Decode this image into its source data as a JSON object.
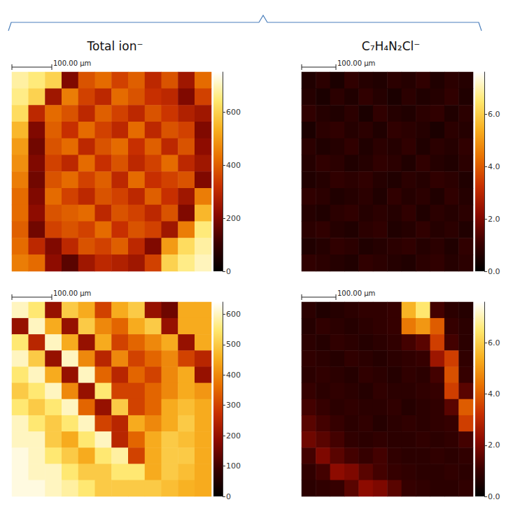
{
  "chart_data": [
    {
      "type": "heatmap",
      "title": "Total ion⁻",
      "scale_bar": {
        "label": "100.00 µm",
        "length": 100
      },
      "extent_um": 500,
      "colorbar_range": [
        0,
        750
      ],
      "colorbar_ticks": [
        0,
        200,
        400,
        600
      ],
      "cells": [
        [
          680,
          650,
          600,
          200,
          380,
          420,
          350,
          400,
          300,
          380,
          250,
          420
        ],
        [
          660,
          600,
          250,
          450,
          350,
          300,
          420,
          380,
          320,
          300,
          200,
          350
        ],
        [
          620,
          300,
          420,
          380,
          300,
          400,
          350,
          300,
          380,
          330,
          280,
          250
        ],
        [
          550,
          200,
          400,
          320,
          420,
          350,
          300,
          420,
          300,
          380,
          350,
          200
        ],
        [
          500,
          180,
          380,
          420,
          300,
          380,
          420,
          320,
          400,
          300,
          380,
          220
        ],
        [
          480,
          200,
          350,
          300,
          420,
          320,
          380,
          300,
          350,
          420,
          300,
          250
        ],
        [
          450,
          180,
          380,
          420,
          350,
          400,
          300,
          420,
          320,
          350,
          380,
          200
        ],
        [
          420,
          200,
          420,
          350,
          300,
          380,
          350,
          300,
          400,
          320,
          250,
          450
        ],
        [
          420,
          220,
          380,
          400,
          420,
          300,
          380,
          350,
          300,
          380,
          200,
          550
        ],
        [
          400,
          180,
          350,
          380,
          350,
          420,
          320,
          380,
          350,
          250,
          450,
          650
        ],
        [
          420,
          300,
          200,
          300,
          380,
          350,
          400,
          300,
          200,
          500,
          620,
          680
        ],
        [
          450,
          420,
          220,
          150,
          250,
          300,
          280,
          250,
          350,
          600,
          660,
          700
        ]
      ]
    },
    {
      "type": "heatmap",
      "title": "C₇H₄N₂Cl⁻",
      "scale_bar": {
        "label": "100.00 µm",
        "length": 100
      },
      "extent_um": 500,
      "colorbar_range": [
        0,
        7.6
      ],
      "colorbar_ticks": [
        {
          "value": 0,
          "label": "0.0"
        },
        {
          "value": 2,
          "label": "2.0"
        },
        {
          "value": 4,
          "label": "4.0"
        },
        {
          "value": 6,
          "label": "6.0"
        }
      ],
      "cells": [
        [
          0.6,
          0.8,
          0.5,
          0.9,
          0.7,
          0.6,
          0.8,
          0.7,
          0.9,
          0.6,
          0.8,
          0.7
        ],
        [
          0.7,
          0.5,
          0.8,
          0.6,
          0.9,
          0.7,
          0.5,
          0.8,
          0.6,
          0.7,
          0.9,
          0.6
        ],
        [
          0.9,
          0.7,
          0.6,
          0.8,
          0.5,
          0.9,
          0.7,
          0.6,
          0.8,
          0.9,
          0.6,
          0.8
        ],
        [
          0.5,
          0.8,
          0.9,
          0.7,
          0.8,
          0.6,
          0.9,
          0.8,
          0.7,
          0.5,
          0.8,
          0.7
        ],
        [
          0.8,
          0.6,
          0.7,
          0.9,
          0.6,
          0.8,
          0.7,
          0.9,
          0.6,
          0.8,
          0.7,
          0.9
        ],
        [
          0.7,
          0.9,
          0.8,
          0.6,
          0.7,
          0.9,
          0.8,
          0.6,
          0.9,
          0.7,
          0.6,
          0.8
        ],
        [
          0.6,
          0.7,
          0.9,
          0.8,
          0.9,
          0.7,
          0.6,
          0.8,
          0.7,
          0.9,
          0.8,
          0.6
        ],
        [
          0.9,
          0.8,
          0.6,
          0.7,
          0.8,
          0.6,
          0.9,
          0.7,
          0.8,
          0.6,
          0.9,
          0.7
        ],
        [
          0.7,
          0.6,
          0.8,
          0.9,
          0.7,
          0.8,
          0.7,
          0.9,
          0.6,
          0.8,
          0.7,
          0.8
        ],
        [
          0.8,
          0.9,
          0.7,
          0.6,
          0.8,
          0.9,
          0.6,
          0.7,
          0.9,
          0.7,
          0.8,
          0.6
        ],
        [
          0.6,
          0.7,
          0.9,
          0.8,
          0.6,
          0.7,
          0.8,
          0.9,
          0.7,
          0.8,
          0.6,
          0.9
        ],
        [
          0.9,
          0.8,
          0.7,
          0.6,
          0.9,
          0.8,
          0.7,
          0.6,
          0.8,
          0.9,
          0.7,
          0.8
        ]
      ]
    },
    {
      "type": "heatmap",
      "scale_bar": {
        "label": "100.00 µm",
        "length": 100
      },
      "extent_um": 500,
      "colorbar_range": [
        0,
        640
      ],
      "colorbar_ticks": [
        0,
        100,
        200,
        300,
        400,
        500,
        600
      ],
      "cells": [
        [
          600,
          550,
          200,
          500,
          450,
          300,
          450,
          500,
          200,
          150,
          450,
          450
        ],
        [
          200,
          600,
          450,
          200,
          500,
          400,
          350,
          450,
          500,
          200,
          450,
          450
        ],
        [
          550,
          250,
          600,
          450,
          200,
          450,
          300,
          350,
          400,
          450,
          200,
          450
        ],
        [
          600,
          500,
          200,
          600,
          400,
          250,
          400,
          300,
          350,
          400,
          300,
          250
        ],
        [
          550,
          600,
          450,
          200,
          600,
          350,
          250,
          350,
          300,
          400,
          450,
          200
        ],
        [
          500,
          550,
          600,
          400,
          200,
          550,
          300,
          300,
          350,
          400,
          450,
          420
        ],
        [
          550,
          500,
          550,
          600,
          350,
          200,
          500,
          300,
          350,
          450,
          480,
          450
        ],
        [
          600,
          550,
          500,
          550,
          600,
          300,
          250,
          450,
          400,
          450,
          500,
          450
        ],
        [
          600,
          600,
          500,
          450,
          550,
          600,
          250,
          350,
          450,
          500,
          480,
          450
        ],
        [
          620,
          600,
          550,
          500,
          450,
          550,
          580,
          300,
          450,
          500,
          500,
          450
        ],
        [
          620,
          600,
          600,
          550,
          500,
          500,
          550,
          550,
          450,
          500,
          480,
          450
        ],
        [
          620,
          620,
          600,
          580,
          550,
          500,
          500,
          500,
          500,
          480,
          460,
          450
        ]
      ]
    },
    {
      "type": "heatmap",
      "scale_bar": {
        "label": "100.00 µm",
        "length": 100
      },
      "extent_um": 500,
      "colorbar_range": [
        0,
        7.6
      ],
      "colorbar_ticks": [
        {
          "value": 0,
          "label": "0.0"
        },
        {
          "value": 2,
          "label": "2.0"
        },
        {
          "value": 4,
          "label": "4.0"
        },
        {
          "value": 6,
          "label": "6.0"
        }
      ],
      "cells": [
        [
          0.8,
          0.6,
          0.7,
          0.8,
          0.9,
          0.9,
          1.0,
          5.5,
          6.5,
          1.2,
          0.8,
          0.7
        ],
        [
          0.7,
          0.9,
          0.8,
          0.7,
          0.8,
          0.9,
          1.0,
          4.5,
          5.0,
          4.0,
          1.0,
          0.8
        ],
        [
          0.8,
          0.7,
          0.9,
          0.8,
          0.7,
          0.8,
          0.9,
          1.2,
          1.5,
          3.5,
          1.2,
          0.8
        ],
        [
          0.9,
          0.8,
          0.7,
          0.9,
          0.8,
          0.7,
          0.8,
          0.9,
          1.0,
          2.5,
          3.5,
          0.9
        ],
        [
          0.8,
          0.9,
          0.8,
          0.7,
          0.9,
          0.8,
          0.7,
          0.9,
          0.8,
          1.2,
          3.8,
          1.0
        ],
        [
          1.0,
          0.8,
          0.9,
          0.8,
          0.7,
          0.9,
          0.8,
          0.8,
          0.9,
          1.0,
          3.5,
          1.5
        ],
        [
          1.2,
          1.0,
          0.8,
          0.9,
          0.8,
          0.8,
          0.9,
          0.7,
          0.8,
          0.9,
          1.5,
          4.0
        ],
        [
          1.5,
          1.2,
          1.0,
          0.8,
          0.9,
          0.7,
          0.8,
          0.9,
          0.8,
          0.9,
          1.0,
          3.5
        ],
        [
          1.8,
          1.5,
          1.2,
          0.9,
          0.8,
          0.9,
          0.8,
          0.8,
          0.9,
          0.8,
          0.9,
          1.2
        ],
        [
          1.2,
          2.0,
          1.5,
          1.2,
          1.0,
          1.2,
          0.9,
          0.8,
          0.8,
          0.9,
          0.8,
          0.9
        ],
        [
          0.9,
          1.2,
          2.2,
          2.0,
          1.5,
          1.2,
          1.0,
          0.9,
          0.8,
          0.8,
          0.9,
          0.8
        ],
        [
          0.8,
          0.9,
          1.0,
          1.5,
          2.2,
          2.0,
          1.5,
          1.0,
          0.9,
          0.8,
          0.8,
          0.9
        ]
      ]
    }
  ]
}
